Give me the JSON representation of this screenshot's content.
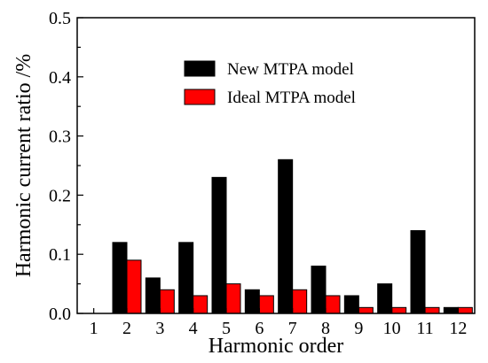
{
  "chart_data": {
    "type": "bar",
    "title": "",
    "xlabel": "Harmonic order",
    "ylabel": "Harmonic current ratio /%",
    "categories": [
      "1",
      "2",
      "3",
      "4",
      "5",
      "6",
      "7",
      "8",
      "9",
      "10",
      "11",
      "12"
    ],
    "series": [
      {
        "name": "New MTPA model",
        "color": "#000000",
        "values": [
          0.0,
          0.12,
          0.06,
          0.12,
          0.23,
          0.04,
          0.26,
          0.08,
          0.03,
          0.05,
          0.14,
          0.01
        ]
      },
      {
        "name": "Ideal MTPA model",
        "color": "#ff0000",
        "values": [
          0.0,
          0.09,
          0.04,
          0.03,
          0.05,
          0.03,
          0.04,
          0.03,
          0.01,
          0.01,
          0.01,
          0.01
        ]
      }
    ],
    "ylim": [
      0,
      0.5
    ],
    "yticks": [
      "0.0",
      "0.1",
      "0.2",
      "0.3",
      "0.4",
      "0.5"
    ],
    "grid": false,
    "legend_position": "top-center"
  }
}
